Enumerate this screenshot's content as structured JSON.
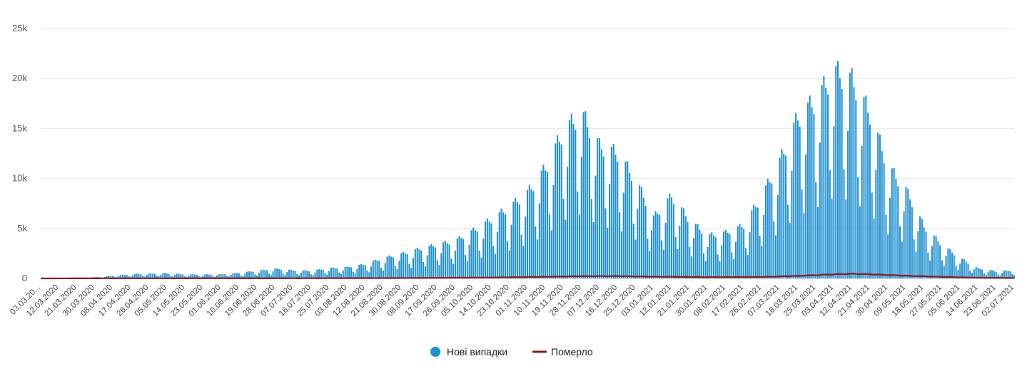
{
  "chart_data": {
    "type": "bar",
    "y_ticks": [
      "0",
      "5k",
      "10k",
      "15k",
      "20k",
      "25k"
    ],
    "y_tick_values": [
      0,
      5000,
      10000,
      15000,
      20000,
      25000
    ],
    "ylim": [
      0,
      25000
    ],
    "x_start_date": "03.03.2020",
    "x_tick_labels": [
      "03.03.20...",
      "12.03.2020",
      "21.03.2020",
      "30.03.2020",
      "08.04.2020",
      "17.04.2020",
      "26.04.2020",
      "05.05.2020",
      "14.05.2020",
      "23.05.2020",
      "01.06.2020",
      "10.06.2020",
      "19.06.2020",
      "28.06.2020",
      "07.07.2020",
      "16.07.2020",
      "25.07.2020",
      "03.08.2020",
      "12.08.2020",
      "21.08.2020",
      "30.08.2020",
      "08.09.2020",
      "17.09.2020",
      "26.09.2020",
      "05.10.2020",
      "14.10.2020",
      "23.10.2020",
      "01.11.2020",
      "10.11.2020",
      "19.11.2020",
      "28.11.2020",
      "07.12.2020",
      "16.12.2020",
      "25.12.2020",
      "03.01.2021",
      "12.01.2021",
      "21.01.2021",
      "30.01.2021",
      "08.02.2021",
      "17.02.2021",
      "26.02.2021",
      "07.03.2021",
      "16.03.2021",
      "25.03.2021",
      "03.04.2021",
      "12.04.2021",
      "21.04.2021",
      "30.04.2021",
      "09.05.2021",
      "18.05.2021",
      "27.05.2021",
      "05.06.2021",
      "14.06.2021",
      "23.06.2021",
      "02.07.2021"
    ],
    "grid": true,
    "legend_position": "bottom-center",
    "series": [
      {
        "name": "Нові випадки",
        "kind": "bar",
        "color": "#1f8fcf",
        "points": [
          [
            "03.03.2020",
            0
          ],
          [
            "12.03.2020",
            5
          ],
          [
            "21.03.2020",
            20
          ],
          [
            "30.03.2020",
            120
          ],
          [
            "08.04.2020",
            250
          ],
          [
            "17.04.2020",
            420
          ],
          [
            "26.04.2020",
            480
          ],
          [
            "05.05.2020",
            500
          ],
          [
            "14.05.2020",
            400
          ],
          [
            "23.05.2020",
            380
          ],
          [
            "01.06.2020",
            400
          ],
          [
            "10.06.2020",
            550
          ],
          [
            "19.06.2020",
            750
          ],
          [
            "28.06.2020",
            950
          ],
          [
            "07.07.2020",
            800
          ],
          [
            "16.07.2020",
            750
          ],
          [
            "25.07.2020",
            1000
          ],
          [
            "03.08.2020",
            1100
          ],
          [
            "12.08.2020",
            1400
          ],
          [
            "21.08.2020",
            2000
          ],
          [
            "30.08.2020",
            2400
          ],
          [
            "08.09.2020",
            2900
          ],
          [
            "17.09.2020",
            3300
          ],
          [
            "26.09.2020",
            3700
          ],
          [
            "05.10.2020",
            4700
          ],
          [
            "14.10.2020",
            5800
          ],
          [
            "23.10.2020",
            7000
          ],
          [
            "01.11.2020",
            8400
          ],
          [
            "10.11.2020",
            10800
          ],
          [
            "19.11.2020",
            14500
          ],
          [
            "28.11.2020",
            16200
          ],
          [
            "07.12.2020",
            13000
          ],
          [
            "16.12.2020",
            12300
          ],
          [
            "25.12.2020",
            9700
          ],
          [
            "03.01.2021",
            6000
          ],
          [
            "12.01.2021",
            8100
          ],
          [
            "21.01.2021",
            5700
          ],
          [
            "30.01.2021",
            4200
          ],
          [
            "08.02.2021",
            4500
          ],
          [
            "17.02.2021",
            5200
          ],
          [
            "26.02.2021",
            8100
          ],
          [
            "07.03.2021",
            11500
          ],
          [
            "16.03.2021",
            15800
          ],
          [
            "25.03.2021",
            17500
          ],
          [
            "03.04.2021",
            20300
          ],
          [
            "12.04.2021",
            19500
          ],
          [
            "21.04.2021",
            16200
          ],
          [
            "30.04.2021",
            11000
          ],
          [
            "09.05.2021",
            8700
          ],
          [
            "18.05.2021",
            5100
          ],
          [
            "27.05.2021",
            3300
          ],
          [
            "05.06.2021",
            2000
          ],
          [
            "14.06.2021",
            1000
          ],
          [
            "23.06.2021",
            700
          ],
          [
            "02.07.2021",
            800
          ]
        ]
      },
      {
        "name": "Померло",
        "kind": "line",
        "color": "#8b1a1a",
        "points": [
          [
            "03.03.2020",
            0
          ],
          [
            "08.04.2020",
            15
          ],
          [
            "14.05.2020",
            15
          ],
          [
            "28.06.2020",
            20
          ],
          [
            "03.08.2020",
            25
          ],
          [
            "08.09.2020",
            45
          ],
          [
            "14.10.2020",
            90
          ],
          [
            "10.11.2020",
            170
          ],
          [
            "28.11.2020",
            230
          ],
          [
            "16.12.2020",
            240
          ],
          [
            "03.01.2021",
            180
          ],
          [
            "30.01.2021",
            130
          ],
          [
            "26.02.2021",
            150
          ],
          [
            "16.03.2021",
            260
          ],
          [
            "03.04.2021",
            420
          ],
          [
            "12.04.2021",
            480
          ],
          [
            "21.04.2021",
            430
          ],
          [
            "09.05.2021",
            280
          ],
          [
            "27.05.2021",
            160
          ],
          [
            "14.06.2021",
            70
          ],
          [
            "02.07.2021",
            40
          ]
        ]
      }
    ]
  },
  "legend": [
    {
      "label": "Нові випадки",
      "color": "#1f8fcf"
    },
    {
      "label": "Померло",
      "color": "#8b1a1a"
    }
  ]
}
